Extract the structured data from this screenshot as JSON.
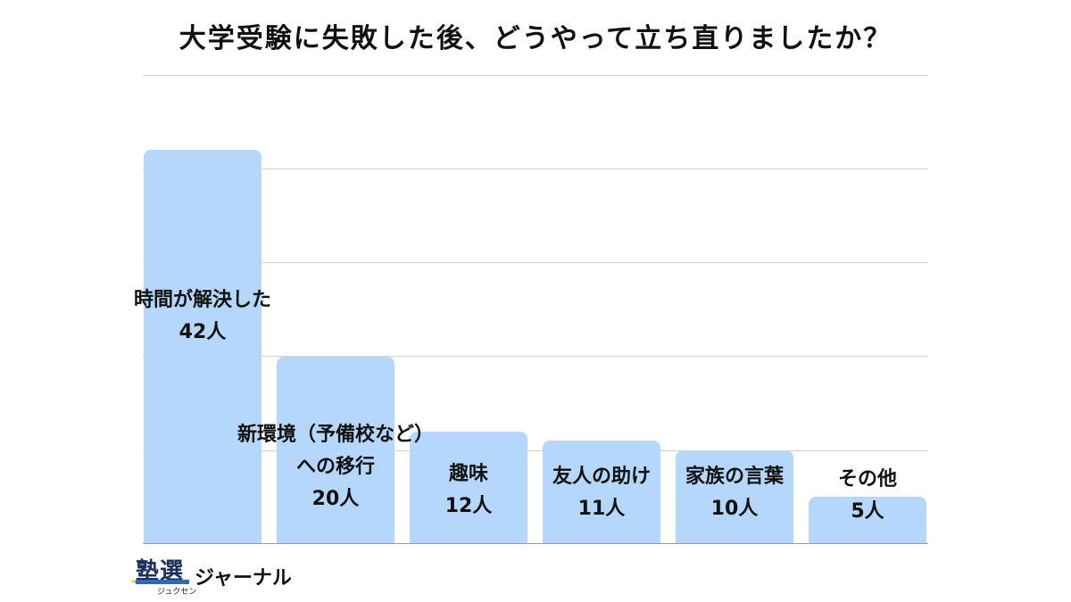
{
  "title": "大学受験に失敗した後、どうやって立ち直りましたか？",
  "logo": {
    "kanji": "塾選",
    "ruby": "ジュクセン",
    "text": "ジャーナル"
  },
  "colors": {
    "bar": "#b5d7fb",
    "grid": "#d0d0d0",
    "baseline": "#9a9a9a",
    "text": "#111111"
  },
  "bars": [
    {
      "label_lines": [
        "時間が解決した"
      ],
      "value_label": "42人"
    },
    {
      "label_lines": [
        "新環境（予備校など）",
        "への移行"
      ],
      "value_label": "20人"
    },
    {
      "label_lines": [
        "趣味"
      ],
      "value_label": "12人"
    },
    {
      "label_lines": [
        "友人の助け"
      ],
      "value_label": "11人"
    },
    {
      "label_lines": [
        "家族の言葉"
      ],
      "value_label": "10人"
    },
    {
      "label_lines": [
        "その他"
      ],
      "value_label": "5人"
    }
  ],
  "chart_data": {
    "type": "bar",
    "title": "大学受験に失敗した後、どうやって立ち直りましたか？",
    "categories": [
      "時間が解決した",
      "新環境（予備校など）への移行",
      "趣味",
      "友人の助け",
      "家族の言葉",
      "その他"
    ],
    "values": [
      42,
      20,
      12,
      11,
      10,
      5
    ],
    "unit": "人",
    "xlabel": "",
    "ylabel": "",
    "ylim": [
      0,
      50
    ],
    "gridlines": [
      10,
      20,
      30,
      40,
      50
    ],
    "grid": true,
    "legend": null,
    "data_labels": [
      "42人",
      "20人",
      "12人",
      "11人",
      "10人",
      "5人"
    ]
  }
}
